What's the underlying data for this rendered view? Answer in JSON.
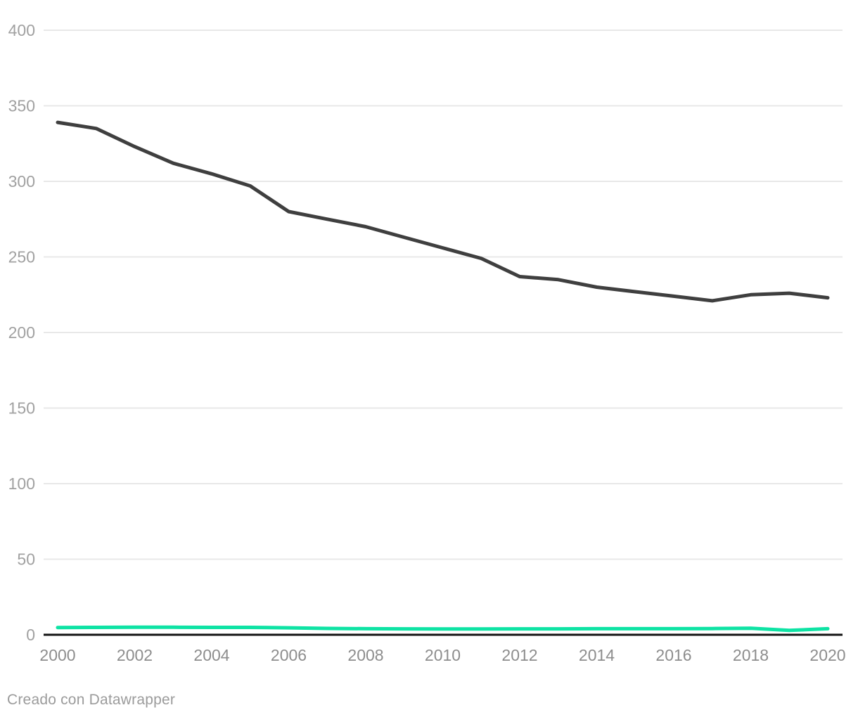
{
  "chart_data": {
    "type": "line",
    "title": "",
    "xlabel": "",
    "ylabel": "",
    "x": [
      2000,
      2001,
      2002,
      2003,
      2004,
      2005,
      2006,
      2007,
      2008,
      2009,
      2010,
      2011,
      2012,
      2013,
      2014,
      2015,
      2016,
      2017,
      2018,
      2019,
      2020
    ],
    "series": [
      {
        "name": "dark-series",
        "color": "#3f3f3f",
        "stroke_width": 5,
        "values": [
          339,
          335,
          323,
          312,
          305,
          297,
          280,
          275,
          270,
          263,
          256,
          249,
          237,
          235,
          230,
          227,
          224,
          221,
          225,
          226,
          223
        ]
      },
      {
        "name": "green-series",
        "color": "#0ee3a4",
        "stroke_width": 5,
        "values": [
          4.8,
          4.9,
          5.0,
          5.0,
          4.9,
          4.9,
          4.6,
          4.2,
          4.0,
          3.9,
          3.8,
          3.8,
          3.9,
          3.9,
          4.0,
          4.0,
          4.0,
          4.1,
          4.3,
          2.9,
          4.0
        ]
      }
    ],
    "ylim": [
      0,
      400
    ],
    "y_ticks": [
      0,
      50,
      100,
      150,
      200,
      250,
      300,
      350,
      400
    ],
    "x_ticks": [
      2000,
      2002,
      2004,
      2006,
      2008,
      2010,
      2012,
      2014,
      2016,
      2018,
      2020
    ],
    "grid": true,
    "legend": "none",
    "gridline_color": "#e8e8e8",
    "axis_line_color": "#141414"
  },
  "footer": {
    "credit": "Creado con Datawrapper"
  }
}
